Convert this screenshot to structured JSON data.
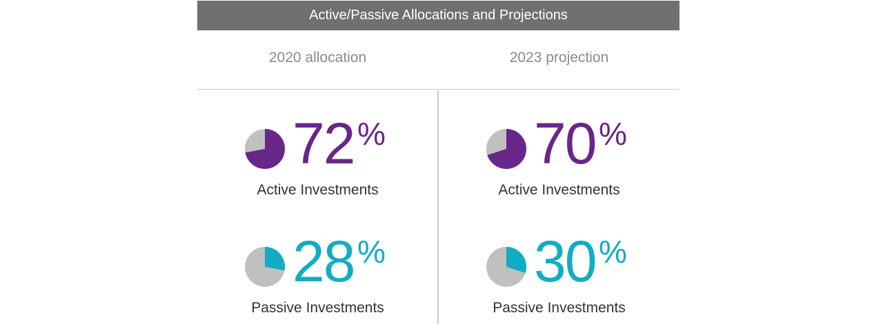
{
  "title": "Active/Passive Allocations and Projections",
  "columns": [
    {
      "header": "2020 allocation",
      "items": [
        {
          "value": "72",
          "unit": "%",
          "fraction": 0.72,
          "label": "Active Investments",
          "color": "#68268a",
          "rest_color": "#c0c0c0"
        },
        {
          "value": "28",
          "unit": "%",
          "fraction": 0.28,
          "label": "Passive Investments",
          "color": "#12acc4",
          "rest_color": "#c0c0c0"
        }
      ]
    },
    {
      "header": "2023 projection",
      "items": [
        {
          "value": "70",
          "unit": "%",
          "fraction": 0.7,
          "label": "Active Investments",
          "color": "#68268a",
          "rest_color": "#c0c0c0"
        },
        {
          "value": "30",
          "unit": "%",
          "fraction": 0.3,
          "label": "Passive Investments",
          "color": "#12acc4",
          "rest_color": "#c0c0c0"
        }
      ]
    }
  ],
  "chart_data": {
    "type": "pie",
    "title": "Active/Passive Allocations and Projections",
    "groups": [
      "2020 allocation",
      "2023 projection"
    ],
    "series": [
      {
        "name": "Active Investments",
        "values": [
          72,
          70
        ]
      },
      {
        "name": "Passive Investments",
        "values": [
          28,
          30
        ]
      }
    ],
    "unit": "%"
  }
}
